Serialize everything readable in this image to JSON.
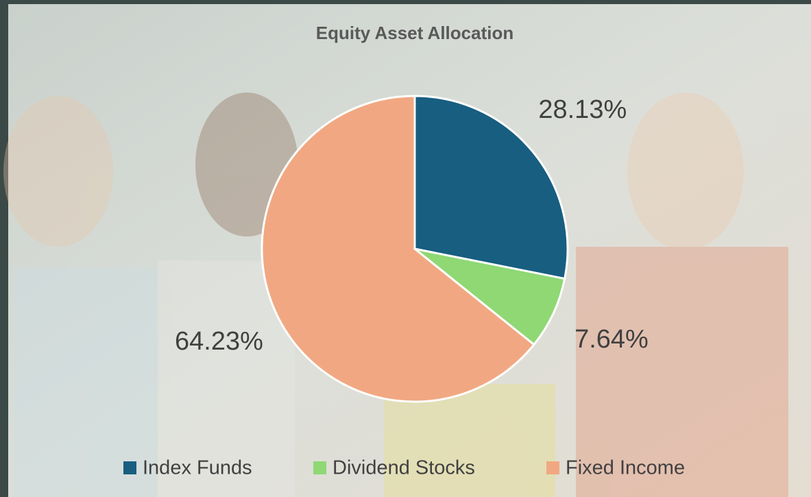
{
  "chart_data": {
    "type": "pie",
    "title": "Equity Asset Allocation",
    "categories": [
      "Index Funds",
      "Dividend Stocks",
      "Fixed Income"
    ],
    "values": [
      28.13,
      7.64,
      64.23
    ],
    "value_labels": [
      "28.13%",
      "7.64%",
      "64.23%"
    ],
    "colors": [
      "#175e80",
      "#8fd874",
      "#f1a882"
    ],
    "legend": "bottom"
  }
}
